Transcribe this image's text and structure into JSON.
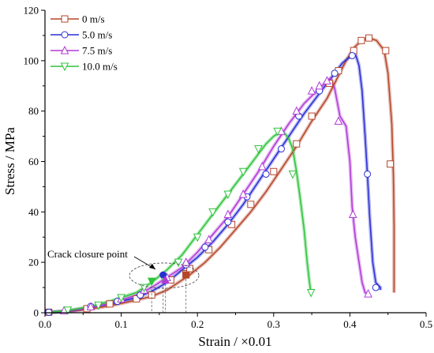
{
  "chart_data": {
    "type": "line",
    "title": "",
    "xlabel": "Strain / ×0.01",
    "ylabel": "Stress / MPa",
    "xlim": [
      0,
      0.5
    ],
    "ylim": [
      0,
      120
    ],
    "x_ticks": [
      "0.0",
      "0.1",
      "0.2",
      "0.3",
      "0.4",
      "0.5"
    ],
    "y_ticks": [
      "0",
      "20",
      "40",
      "60",
      "80",
      "100",
      "120"
    ],
    "legend_position": "top-left",
    "series": [
      {
        "name": "0 m/s",
        "color": "#b5462a",
        "marker": "square",
        "points": [
          [
            0,
            0
          ],
          [
            0.03,
            0.5
          ],
          [
            0.06,
            1.5
          ],
          [
            0.09,
            3
          ],
          [
            0.12,
            5
          ],
          [
            0.14,
            6.5
          ],
          [
            0.16,
            9
          ],
          [
            0.175,
            12
          ],
          [
            0.19,
            15
          ],
          [
            0.21,
            20
          ],
          [
            0.23,
            26
          ],
          [
            0.25,
            33
          ],
          [
            0.27,
            40
          ],
          [
            0.29,
            48
          ],
          [
            0.31,
            57
          ],
          [
            0.33,
            66
          ],
          [
            0.35,
            76
          ],
          [
            0.37,
            85
          ],
          [
            0.385,
            94
          ],
          [
            0.395,
            100
          ],
          [
            0.405,
            105
          ],
          [
            0.415,
            108
          ],
          [
            0.425,
            109
          ],
          [
            0.435,
            108
          ],
          [
            0.445,
            104
          ],
          [
            0.45,
            95
          ],
          [
            0.455,
            75
          ],
          [
            0.457,
            55
          ],
          [
            0.458,
            35
          ],
          [
            0.458,
            8
          ]
        ],
        "markers": [
          [
            0.005,
            0.2
          ],
          [
            0.055,
            1.6
          ],
          [
            0.085,
            3.5
          ],
          [
            0.12,
            5.5
          ],
          [
            0.14,
            7
          ],
          [
            0.165,
            13
          ],
          [
            0.185,
            15.5
          ],
          [
            0.19,
            17.5
          ],
          [
            0.215,
            25
          ],
          [
            0.245,
            35
          ],
          [
            0.27,
            43
          ],
          [
            0.3,
            56
          ],
          [
            0.33,
            67
          ],
          [
            0.35,
            78
          ],
          [
            0.373,
            91
          ],
          [
            0.385,
            96
          ],
          [
            0.405,
            104
          ],
          [
            0.415,
            108
          ],
          [
            0.425,
            109
          ],
          [
            0.447,
            104
          ],
          [
            0.453,
            59
          ]
        ]
      },
      {
        "name": "5.0 m/s",
        "color": "#2a2ed4",
        "marker": "circle",
        "points": [
          [
            0,
            0
          ],
          [
            0.03,
            0.6
          ],
          [
            0.06,
            2
          ],
          [
            0.09,
            3.8
          ],
          [
            0.12,
            6
          ],
          [
            0.14,
            8.5
          ],
          [
            0.16,
            12
          ],
          [
            0.18,
            17
          ],
          [
            0.2,
            22
          ],
          [
            0.22,
            28
          ],
          [
            0.24,
            35
          ],
          [
            0.26,
            43
          ],
          [
            0.28,
            52
          ],
          [
            0.3,
            61
          ],
          [
            0.32,
            70
          ],
          [
            0.34,
            79
          ],
          [
            0.36,
            87
          ],
          [
            0.38,
            95
          ],
          [
            0.39,
            99
          ],
          [
            0.4,
            101.5
          ],
          [
            0.408,
            102
          ],
          [
            0.412,
            98
          ],
          [
            0.416,
            88
          ],
          [
            0.42,
            70
          ],
          [
            0.423,
            55
          ],
          [
            0.426,
            38
          ],
          [
            0.43,
            20
          ],
          [
            0.434,
            12
          ],
          [
            0.44,
            10
          ],
          [
            0.44,
            9
          ]
        ],
        "markers": [
          [
            0.005,
            0.2
          ],
          [
            0.06,
            2.5
          ],
          [
            0.095,
            4.5
          ],
          [
            0.125,
            7
          ],
          [
            0.157,
            14
          ],
          [
            0.185,
            19
          ],
          [
            0.21,
            26
          ],
          [
            0.24,
            36
          ],
          [
            0.265,
            46
          ],
          [
            0.29,
            55
          ],
          [
            0.31,
            65
          ],
          [
            0.333,
            78
          ],
          [
            0.36,
            88
          ],
          [
            0.38,
            95
          ],
          [
            0.403,
            102
          ],
          [
            0.423,
            55
          ],
          [
            0.434,
            10
          ]
        ]
      },
      {
        "name": "7.5 m/s",
        "color": "#b13ad6",
        "marker": "triangle-up",
        "points": [
          [
            0,
            0
          ],
          [
            0.03,
            0.7
          ],
          [
            0.06,
            2
          ],
          [
            0.09,
            4
          ],
          [
            0.12,
            7
          ],
          [
            0.14,
            10
          ],
          [
            0.16,
            14
          ],
          [
            0.18,
            18
          ],
          [
            0.2,
            24
          ],
          [
            0.22,
            31
          ],
          [
            0.24,
            38
          ],
          [
            0.26,
            47
          ],
          [
            0.28,
            56
          ],
          [
            0.3,
            66
          ],
          [
            0.32,
            75
          ],
          [
            0.34,
            83
          ],
          [
            0.36,
            89
          ],
          [
            0.37,
            92
          ],
          [
            0.375,
            93
          ],
          [
            0.38,
            89
          ],
          [
            0.387,
            78
          ],
          [
            0.395,
            74
          ],
          [
            0.4,
            60
          ],
          [
            0.403,
            42
          ],
          [
            0.407,
            30
          ],
          [
            0.412,
            20
          ],
          [
            0.416,
            12
          ],
          [
            0.42,
            8
          ],
          [
            0.425,
            7.5
          ]
        ],
        "markers": [
          [
            0.025,
            0.8
          ],
          [
            0.06,
            2.4
          ],
          [
            0.1,
            5.5
          ],
          [
            0.13,
            9
          ],
          [
            0.16,
            14
          ],
          [
            0.185,
            20
          ],
          [
            0.215,
            29
          ],
          [
            0.24,
            39
          ],
          [
            0.26,
            47
          ],
          [
            0.285,
            58
          ],
          [
            0.31,
            72
          ],
          [
            0.33,
            80
          ],
          [
            0.35,
            88
          ],
          [
            0.36,
            90
          ],
          [
            0.37,
            92
          ],
          [
            0.385,
            76
          ],
          [
            0.404,
            39
          ],
          [
            0.424,
            7.5
          ]
        ]
      },
      {
        "name": "10.0 m/s",
        "color": "#2fc43c",
        "marker": "triangle-down",
        "points": [
          [
            0,
            0
          ],
          [
            0.03,
            0.8
          ],
          [
            0.06,
            2.5
          ],
          [
            0.09,
            5
          ],
          [
            0.12,
            8
          ],
          [
            0.14,
            12
          ],
          [
            0.16,
            17
          ],
          [
            0.18,
            23
          ],
          [
            0.2,
            31
          ],
          [
            0.22,
            39
          ],
          [
            0.24,
            47
          ],
          [
            0.26,
            55
          ],
          [
            0.28,
            63
          ],
          [
            0.29,
            67
          ],
          [
            0.3,
            70
          ],
          [
            0.31,
            72
          ],
          [
            0.315,
            71
          ],
          [
            0.32,
            69
          ],
          [
            0.325,
            65
          ],
          [
            0.33,
            56
          ],
          [
            0.335,
            45
          ],
          [
            0.34,
            33
          ],
          [
            0.344,
            20
          ],
          [
            0.347,
            12
          ],
          [
            0.349,
            8
          ]
        ],
        "markers": [
          [
            0.03,
            1
          ],
          [
            0.07,
            3
          ],
          [
            0.1,
            6
          ],
          [
            0.13,
            10
          ],
          [
            0.155,
            14
          ],
          [
            0.175,
            20
          ],
          [
            0.2,
            30
          ],
          [
            0.22,
            40
          ],
          [
            0.24,
            47
          ],
          [
            0.26,
            56
          ],
          [
            0.28,
            65
          ],
          [
            0.305,
            72
          ],
          [
            0.325,
            55
          ],
          [
            0.349,
            8
          ]
        ]
      }
    ],
    "crack_closure_points": [
      {
        "series": "0 m/s",
        "x": 0.185,
        "y": 15
      },
      {
        "series": "5.0 m/s",
        "x": 0.155,
        "y": 15
      },
      {
        "series": "7.5 m/s",
        "x": 0.158,
        "y": 13
      },
      {
        "series": "10.0 m/s",
        "x": 0.14,
        "y": 12.5
      }
    ],
    "annotation": "Crack closure point"
  }
}
